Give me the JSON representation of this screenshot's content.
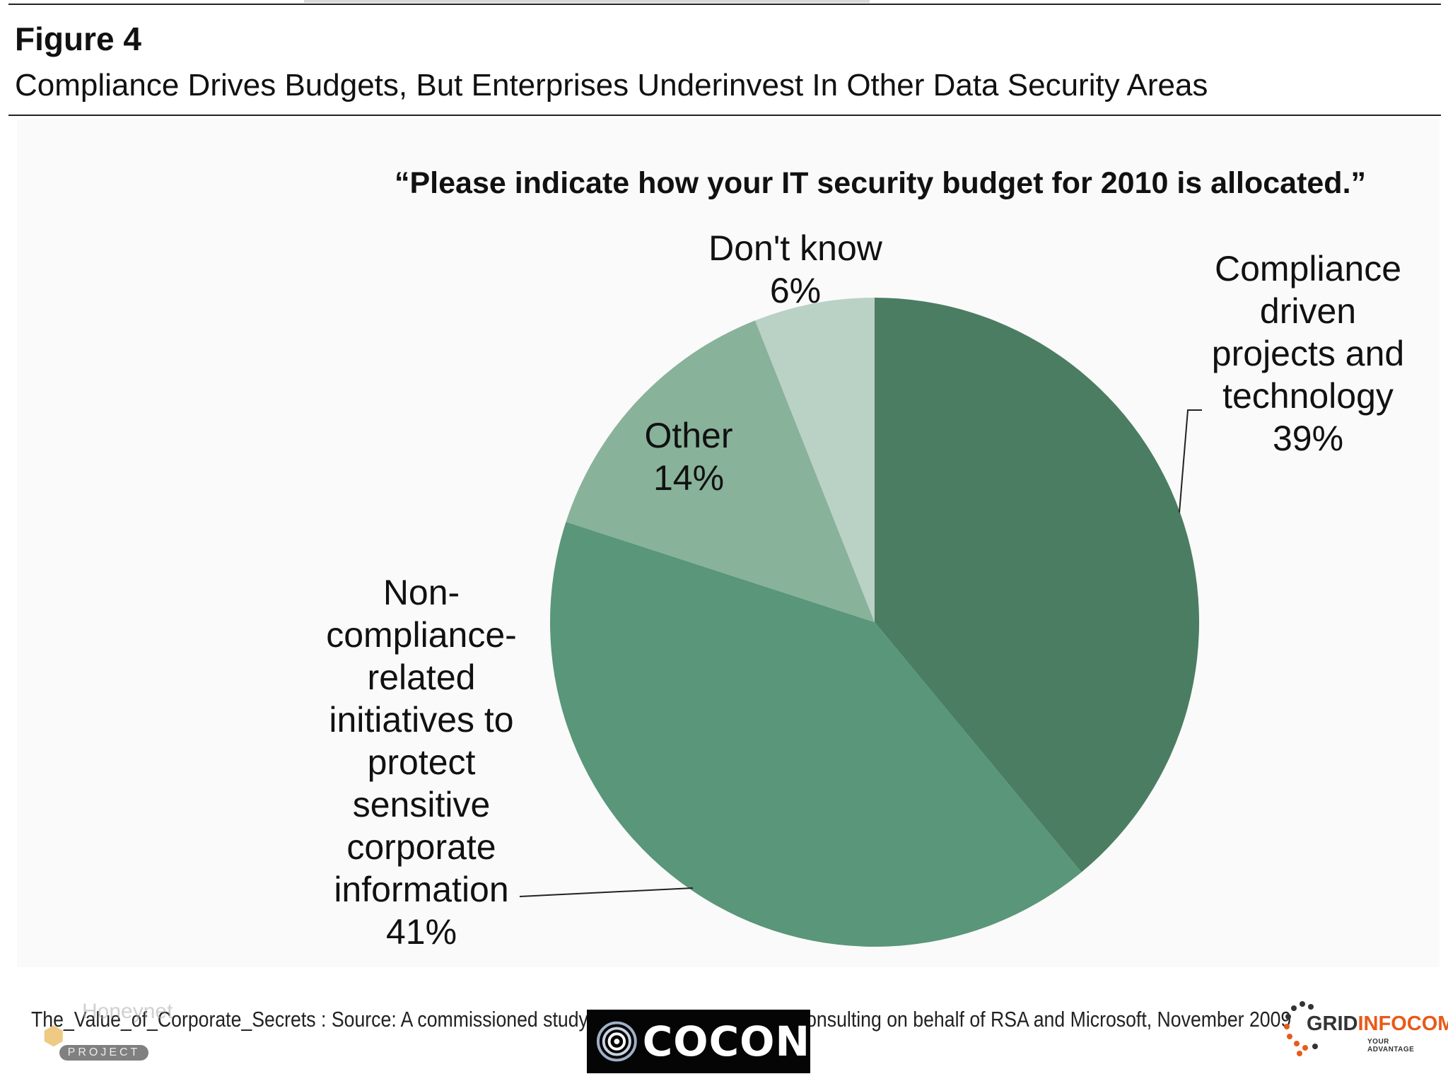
{
  "figure": {
    "number": "Figure 4",
    "caption": "Compliance Drives Budgets, But Enterprises Underinvest In Other Data Security Areas"
  },
  "chart_data": {
    "type": "pie",
    "title": "“Please indicate how your IT security budget for 2010 is allocated.”",
    "unit": "%",
    "start_angle_deg": 0,
    "direction": "clockwise",
    "slices": [
      {
        "label_lines": [
          "Compliance",
          "driven",
          "projects and",
          "technology"
        ],
        "value": 39,
        "value_label": "39%",
        "color": "#4b7d62"
      },
      {
        "label_lines": [
          "Non-",
          "compliance-",
          "related",
          "initiatives to",
          "protect",
          "sensitive",
          "corporate",
          "information"
        ],
        "value": 41,
        "value_label": "41%",
        "color": "#5a9679"
      },
      {
        "label_lines": [
          "Other"
        ],
        "value": 14,
        "value_label": "14%",
        "color": "#88b29a"
      },
      {
        "label_lines": [
          "Don't know"
        ],
        "value": 6,
        "value_label": "6%",
        "color": "#b9d2c5"
      }
    ]
  },
  "footer": {
    "source": "The_Value_of_Corporate_Secrets : Source: A commissioned study conducted by Forrester Consulting on behalf of RSA and Microsoft, November 2009"
  },
  "logos": {
    "honeynet": {
      "name": "Honeynet",
      "tag": "PROJECT"
    },
    "cocon": {
      "text": "COCON"
    },
    "grid_infocom": {
      "word1": "GRID",
      "word2": "INFOCOM",
      "tagline": "YOUR ADVANTAGE"
    }
  }
}
